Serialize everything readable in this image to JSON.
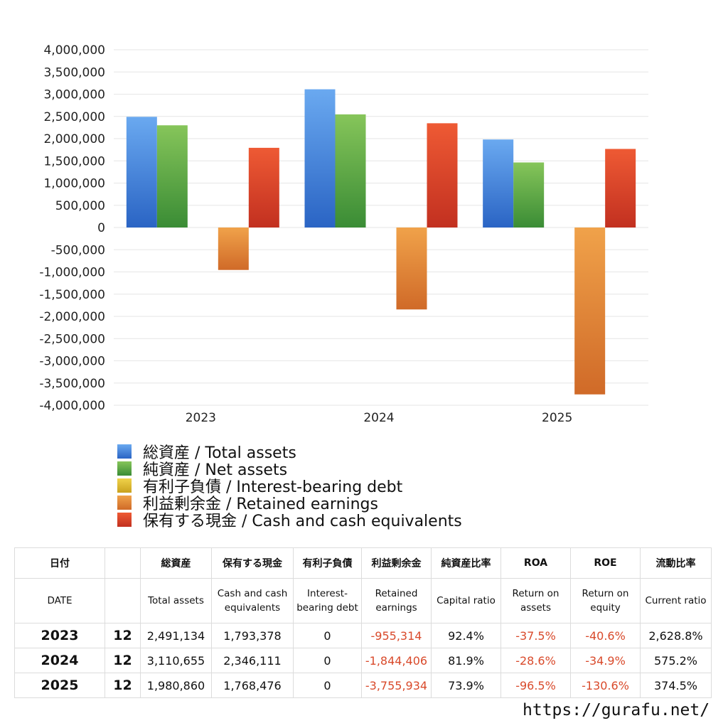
{
  "chart_data": {
    "type": "bar",
    "categories": [
      "2023",
      "2024",
      "2025"
    ],
    "ylim": [
      -4000000,
      4000000
    ],
    "ytick_step": 500000,
    "ytick_labels": [
      "4,000,000",
      "3,500,000",
      "3,000,000",
      "2,500,000",
      "2,000,000",
      "1,500,000",
      "1,000,000",
      "500,000",
      "0",
      "-500,000",
      "-1,000,000",
      "-1,500,000",
      "-2,000,000",
      "-2,500,000",
      "-3,000,000",
      "-3,500,000",
      "-4,000,000"
    ],
    "grid": true,
    "legend_position": "bottom",
    "series": [
      {
        "name": "総資産 / Total assets",
        "values": [
          2491134,
          3110655,
          1980860
        ],
        "color_top": "#6aa9f0",
        "color_bottom": "#2a64c4"
      },
      {
        "name": "純資産 / Net assets",
        "values": [
          2300000,
          2546000,
          1464000
        ],
        "color_top": "#86c55a",
        "color_bottom": "#3a8c35"
      },
      {
        "name": "有利子負債 / Interest-bearing debt",
        "values": [
          0,
          0,
          0
        ],
        "color_top": "#f0d24a",
        "color_bottom": "#c9a21e"
      },
      {
        "name": "利益剰余金 / Retained earnings",
        "values": [
          -955314,
          -1844406,
          -3755934
        ],
        "color_top": "#f0a24a",
        "color_bottom": "#d06a28"
      },
      {
        "name": "保有する現金 /  Cash and cash equivalents",
        "values": [
          1793378,
          2346111,
          1768476
        ],
        "color_top": "#ee5a34",
        "color_bottom": "#c23020"
      }
    ]
  },
  "table": {
    "header_jp": [
      "日付",
      "",
      "総資産",
      "保有する現金",
      "有利子負債",
      "利益剰余金",
      "純資産比率",
      "ROA",
      "ROE",
      "流動比率"
    ],
    "header_en": [
      "DATE",
      "",
      "Total assets",
      "Cash and cash equivalents",
      "Interest-bearing debt",
      "Retained earnings",
      "Capital ratio",
      "Return on assets",
      "Return on equity",
      "Current ratio"
    ],
    "rows": [
      {
        "year": "2023",
        "month": "12",
        "total_assets": "2,491,134",
        "cash": "1,793,378",
        "debt": "0",
        "retained": "-955,314",
        "capital_ratio": "92.4%",
        "roa": "-37.5%",
        "roe": "-40.6%",
        "current_ratio": "2,628.8%"
      },
      {
        "year": "2024",
        "month": "12",
        "total_assets": "3,110,655",
        "cash": "2,346,111",
        "debt": "0",
        "retained": "-1,844,406",
        "capital_ratio": "81.9%",
        "roa": "-28.6%",
        "roe": "-34.9%",
        "current_ratio": "575.2%"
      },
      {
        "year": "2025",
        "month": "12",
        "total_assets": "1,980,860",
        "cash": "1,768,476",
        "debt": "0",
        "retained": "-3,755,934",
        "capital_ratio": "73.9%",
        "roa": "-96.5%",
        "roe": "-130.6%",
        "current_ratio": "374.5%"
      }
    ]
  },
  "footer": {
    "url": "https://gurafu.net/"
  }
}
